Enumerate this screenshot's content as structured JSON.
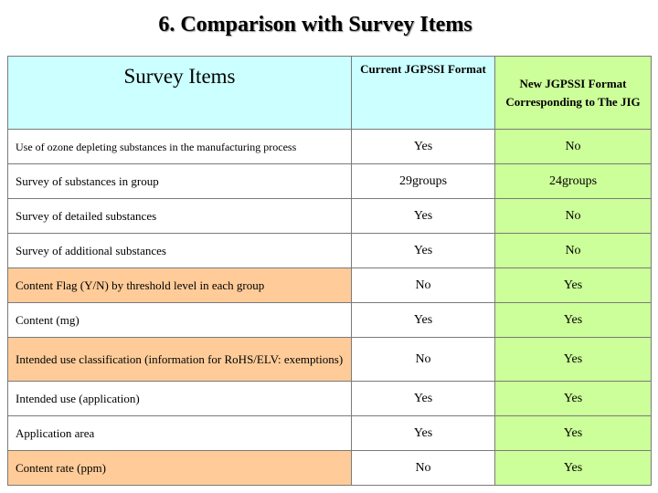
{
  "title": "6. Comparison with Survey Items",
  "table": {
    "header": {
      "items": "Survey Items",
      "current_format": "Current JGPSSI Format",
      "new_format": "New JGPSSI Format Corresponding to The JIG"
    },
    "rows": [
      {
        "item": "Use of ozone depleting substances in the manufacturing process",
        "current": "Yes",
        "new": "No"
      },
      {
        "item": "Survey of substances in group",
        "current": "29groups",
        "new": "24groups"
      },
      {
        "item": "Survey of detailed substances",
        "current": "Yes",
        "new": "No"
      },
      {
        "item": "Survey of additional substances",
        "current": "Yes",
        "new": "No"
      },
      {
        "item": "Content Flag (Y/N) by threshold level in each group",
        "current": "No",
        "new": "Yes"
      },
      {
        "item": "Content (mg)",
        "current": "Yes",
        "new": "Yes"
      },
      {
        "item": "Intended use classification (information for RoHS/ELV: exemptions)",
        "current": "No",
        "new": "Yes"
      },
      {
        "item": "Intended use (application)",
        "current": "Yes",
        "new": "Yes"
      },
      {
        "item": "Application area",
        "current": "Yes",
        "new": "Yes"
      },
      {
        "item": "Content rate (ppm)",
        "current": "No",
        "new": "Yes"
      }
    ]
  },
  "colors": {
    "header_blue": "#ccffff",
    "new_column_green": "#ccff99",
    "highlight_peach": "#ffcc99"
  }
}
